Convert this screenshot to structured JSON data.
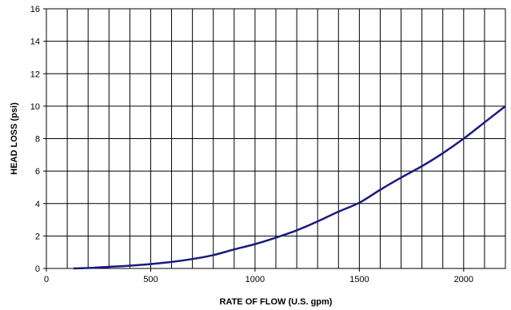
{
  "chart_data": {
    "type": "line",
    "xlabel": "RATE OF FLOW (U.S. gpm)",
    "ylabel": "HEAD LOSS (psi)",
    "xlim": [
      0,
      2200
    ],
    "ylim": [
      0,
      16
    ],
    "x_ticks": [
      0,
      500,
      1000,
      1500,
      2000
    ],
    "y_ticks": [
      0,
      2,
      4,
      6,
      8,
      10,
      12,
      14,
      16
    ],
    "x_gridline_step": 100,
    "y_gridline_step": 2,
    "grid": true,
    "legend": "none",
    "series": [
      {
        "color": "#1a1a7e",
        "x": [
          130,
          200,
          300,
          400,
          500,
          600,
          700,
          800,
          900,
          1000,
          1100,
          1200,
          1300,
          1400,
          1500,
          1600,
          1700,
          1800,
          1900,
          2000,
          2100,
          2200
        ],
        "y": [
          0,
          0.03,
          0.1,
          0.17,
          0.27,
          0.4,
          0.58,
          0.82,
          1.17,
          1.5,
          1.9,
          2.35,
          2.9,
          3.5,
          4.05,
          4.85,
          5.6,
          6.3,
          7.1,
          8.0,
          9.0,
          10.0
        ]
      }
    ]
  }
}
